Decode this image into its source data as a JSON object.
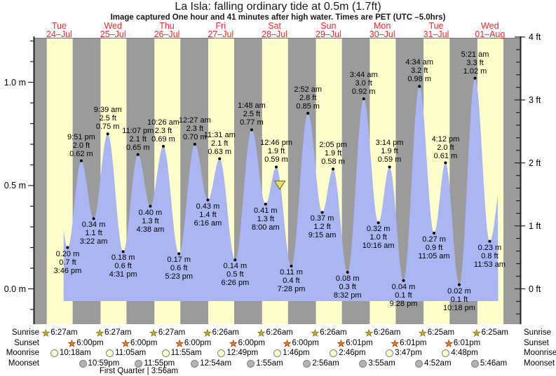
{
  "title": "La Isla: falling  ordinary tide at 0.5m (1.7ft)",
  "subtitle": "Image captured One hour and 41 minutes after high water. Times are PET (UTC –5.0hrs)",
  "moon_phase": "First Quarter | 3:56am",
  "colors": {
    "night_band": "#9b9b9b",
    "day_band": "#ffffcc",
    "water": "#a9b6f2",
    "day_label": "#ee2b2b",
    "current_marker": "#e9e066",
    "current_marker_border": "#77773a",
    "sunrise_star": "#c3af2c",
    "sunrise_star_border": "#7a6a00",
    "sunset_star": "#e87f1a",
    "sunset_star_border": "#993300",
    "moonrise_fill": "#ffffcc",
    "moonset_fill": "#b3b3b3"
  },
  "days": [
    {
      "name": "Tue",
      "date": "24–Jul",
      "sunrise": "6:27am",
      "sunset": "6:00pm"
    },
    {
      "name": "Wed",
      "date": "25–Jul",
      "sunrise": "6:27am",
      "sunset": "6:00pm"
    },
    {
      "name": "Thu",
      "date": "26–Jul",
      "sunrise": "6:27am",
      "sunset": "6:00pm"
    },
    {
      "name": "Fri",
      "date": "27–Jul",
      "sunrise": "6:26am",
      "sunset": "6:00pm"
    },
    {
      "name": "Sat",
      "date": "28–Jul",
      "sunrise": "6:26am",
      "sunset": "6:00pm"
    },
    {
      "name": "Sun",
      "date": "29–Jul",
      "sunrise": "6:26am",
      "sunset": "6:01pm"
    },
    {
      "name": "Mon",
      "date": "30–Jul",
      "sunrise": "6:26am",
      "sunset": "6:01pm"
    },
    {
      "name": "Tue",
      "date": "31–Jul",
      "sunrise": "6:25am",
      "sunset": "6:01pm"
    },
    {
      "name": "Wed",
      "date": "01–Aug",
      "sunrise": "6:25am",
      "sunset": null
    }
  ],
  "axes": {
    "left_labels": [
      {
        "text": "0.0 m",
        "m": 0.0
      },
      {
        "text": "0.5 m",
        "m": 0.5
      },
      {
        "text": "1.0 m",
        "m": 1.0
      }
    ],
    "right_labels": [
      {
        "text": "0 ft",
        "ft": 0
      },
      {
        "text": "1 ft",
        "ft": 1
      },
      {
        "text": "2 ft",
        "ft": 2
      },
      {
        "text": "3 ft",
        "ft": 3
      },
      {
        "text": "4 ft",
        "ft": 4
      }
    ]
  },
  "rows": {
    "captions": [
      "Sunrise",
      "Sunset",
      "Moonrise",
      "Moonset"
    ],
    "moonrise": [
      {
        "day": 0,
        "time": "10:18am"
      },
      {
        "day": 1,
        "time": "11:05am"
      },
      {
        "day": 2,
        "time": "11:55am"
      },
      {
        "day": 3,
        "time": "12:49pm"
      },
      {
        "day": 4,
        "time": "1:46pm"
      },
      {
        "day": 5,
        "time": "2:46pm"
      },
      {
        "day": 6,
        "time": "3:47pm"
      },
      {
        "day": 7,
        "time": "4:48pm"
      }
    ],
    "moonset": [
      {
        "day": 0,
        "time": "10:59pm"
      },
      {
        "day": 1,
        "time": "11:55pm"
      },
      {
        "day": 3,
        "time": "12:54am"
      },
      {
        "day": 4,
        "time": "1:55am"
      },
      {
        "day": 5,
        "time": "2:56am"
      },
      {
        "day": 6,
        "time": "3:55am"
      },
      {
        "day": 7,
        "time": "4:52am"
      },
      {
        "day": 8,
        "time": "5:46am"
      }
    ]
  },
  "chart_data": {
    "type": "area",
    "title": "La Isla tide height, Tue 24-Jul to Wed 01-Aug",
    "y_left": {
      "unit": "m",
      "ticks": [
        0.0,
        0.5,
        1.0
      ],
      "minor_step": 0.1,
      "range": [
        -0.17,
        1.21
      ]
    },
    "y_right": {
      "unit": "ft",
      "ticks": [
        0,
        1,
        2,
        3,
        4
      ],
      "minor_step": 0.2,
      "range": [
        -0.56,
        4.0
      ]
    },
    "current_marker": {
      "day": 4,
      "height_m": 0.5,
      "note": "falling tide marker (yellow triangle)"
    },
    "extremes": [
      {
        "day": 0,
        "type": "low",
        "time": "3:46 pm",
        "ft": "0.7 ft",
        "m": "0.20 m"
      },
      {
        "day": 0,
        "type": "high",
        "time": "9:51 pm",
        "ft": "2.0 ft",
        "m": "0.62 m"
      },
      {
        "day": 1,
        "type": "low",
        "time": "3:22 am",
        "ft": "1.1 ft",
        "m": "0.34 m"
      },
      {
        "day": 1,
        "type": "high",
        "time": "9:39 am",
        "ft": "2.5 ft",
        "m": "0.75 m"
      },
      {
        "day": 1,
        "type": "low",
        "time": "4:31 pm",
        "ft": "0.6 ft",
        "m": "0.18 m"
      },
      {
        "day": 1,
        "type": "high",
        "time": "11:07 pm",
        "ft": "2.1 ft",
        "m": "0.65 m"
      },
      {
        "day": 2,
        "type": "low",
        "time": "4:38 am",
        "ft": "1.3 ft",
        "m": "0.40 m"
      },
      {
        "day": 2,
        "type": "high",
        "time": "10:26 am",
        "ft": "2.3 ft",
        "m": "0.69 m"
      },
      {
        "day": 2,
        "type": "low",
        "time": "5:23 pm",
        "ft": "0.6 ft",
        "m": "0.17 m"
      },
      {
        "day": 3,
        "type": "high",
        "time": "12:27 am",
        "ft": "2.3 ft",
        "m": "0.70 m"
      },
      {
        "day": 3,
        "type": "low",
        "time": "6:16 am",
        "ft": "1.4 ft",
        "m": "0.43 m"
      },
      {
        "day": 3,
        "type": "high",
        "time": "11:31 am",
        "ft": "2.1 ft",
        "m": "0.63 m"
      },
      {
        "day": 3,
        "type": "low",
        "time": "6:26 pm",
        "ft": "0.5 ft",
        "m": "0.14 m"
      },
      {
        "day": 4,
        "type": "high",
        "time": "1:48 am",
        "ft": "2.5 ft",
        "m": "0.77 m"
      },
      {
        "day": 4,
        "type": "low",
        "time": "8:00 am",
        "ft": "1.3 ft",
        "m": "0.41 m"
      },
      {
        "day": 4,
        "type": "high",
        "time": "12:46 pm",
        "ft": "1.9 ft",
        "m": "0.59 m"
      },
      {
        "day": 4,
        "type": "low",
        "time": "7:28 pm",
        "ft": "0.4 ft",
        "m": "0.11 m"
      },
      {
        "day": 5,
        "type": "high",
        "time": "2:52 am",
        "ft": "2.8 ft",
        "m": "0.85 m"
      },
      {
        "day": 5,
        "type": "low",
        "time": "9:15 am",
        "ft": "1.2 ft",
        "m": "0.37 m"
      },
      {
        "day": 5,
        "type": "high",
        "time": "2:05 pm",
        "ft": "1.9 ft",
        "m": "0.58 m"
      },
      {
        "day": 5,
        "type": "low",
        "time": "8:32 pm",
        "ft": "0.3 ft",
        "m": "0.08 m"
      },
      {
        "day": 6,
        "type": "high",
        "time": "3:44 am",
        "ft": "3.0 ft",
        "m": "0.92 m"
      },
      {
        "day": 6,
        "type": "low",
        "time": "10:16 am",
        "ft": "1.0 ft",
        "m": "0.32 m"
      },
      {
        "day": 6,
        "type": "high",
        "time": "3:14 pm",
        "ft": "1.9 ft",
        "m": "0.59 m"
      },
      {
        "day": 6,
        "type": "low",
        "time": "9:28 pm",
        "ft": "0.1 ft",
        "m": "0.04 m"
      },
      {
        "day": 7,
        "type": "high",
        "time": "4:34 am",
        "ft": "3.2 ft",
        "m": "0.98 m"
      },
      {
        "day": 7,
        "type": "low",
        "time": "11:05 am",
        "ft": "0.9 ft",
        "m": "0.27 m"
      },
      {
        "day": 7,
        "type": "high",
        "time": "4:12 pm",
        "ft": "2.0 ft",
        "m": "0.61 m"
      },
      {
        "day": 7,
        "type": "low",
        "time": "10:18 pm",
        "ft": "0.1 ft",
        "m": "0.02 m"
      },
      {
        "day": 8,
        "type": "high",
        "time": "5:21 am",
        "ft": "3.3 ft",
        "m": "1.02 m"
      },
      {
        "day": 8,
        "type": "low",
        "time": "11:53 am",
        "ft": "0.8 ft",
        "m": "0.23 m"
      }
    ]
  }
}
